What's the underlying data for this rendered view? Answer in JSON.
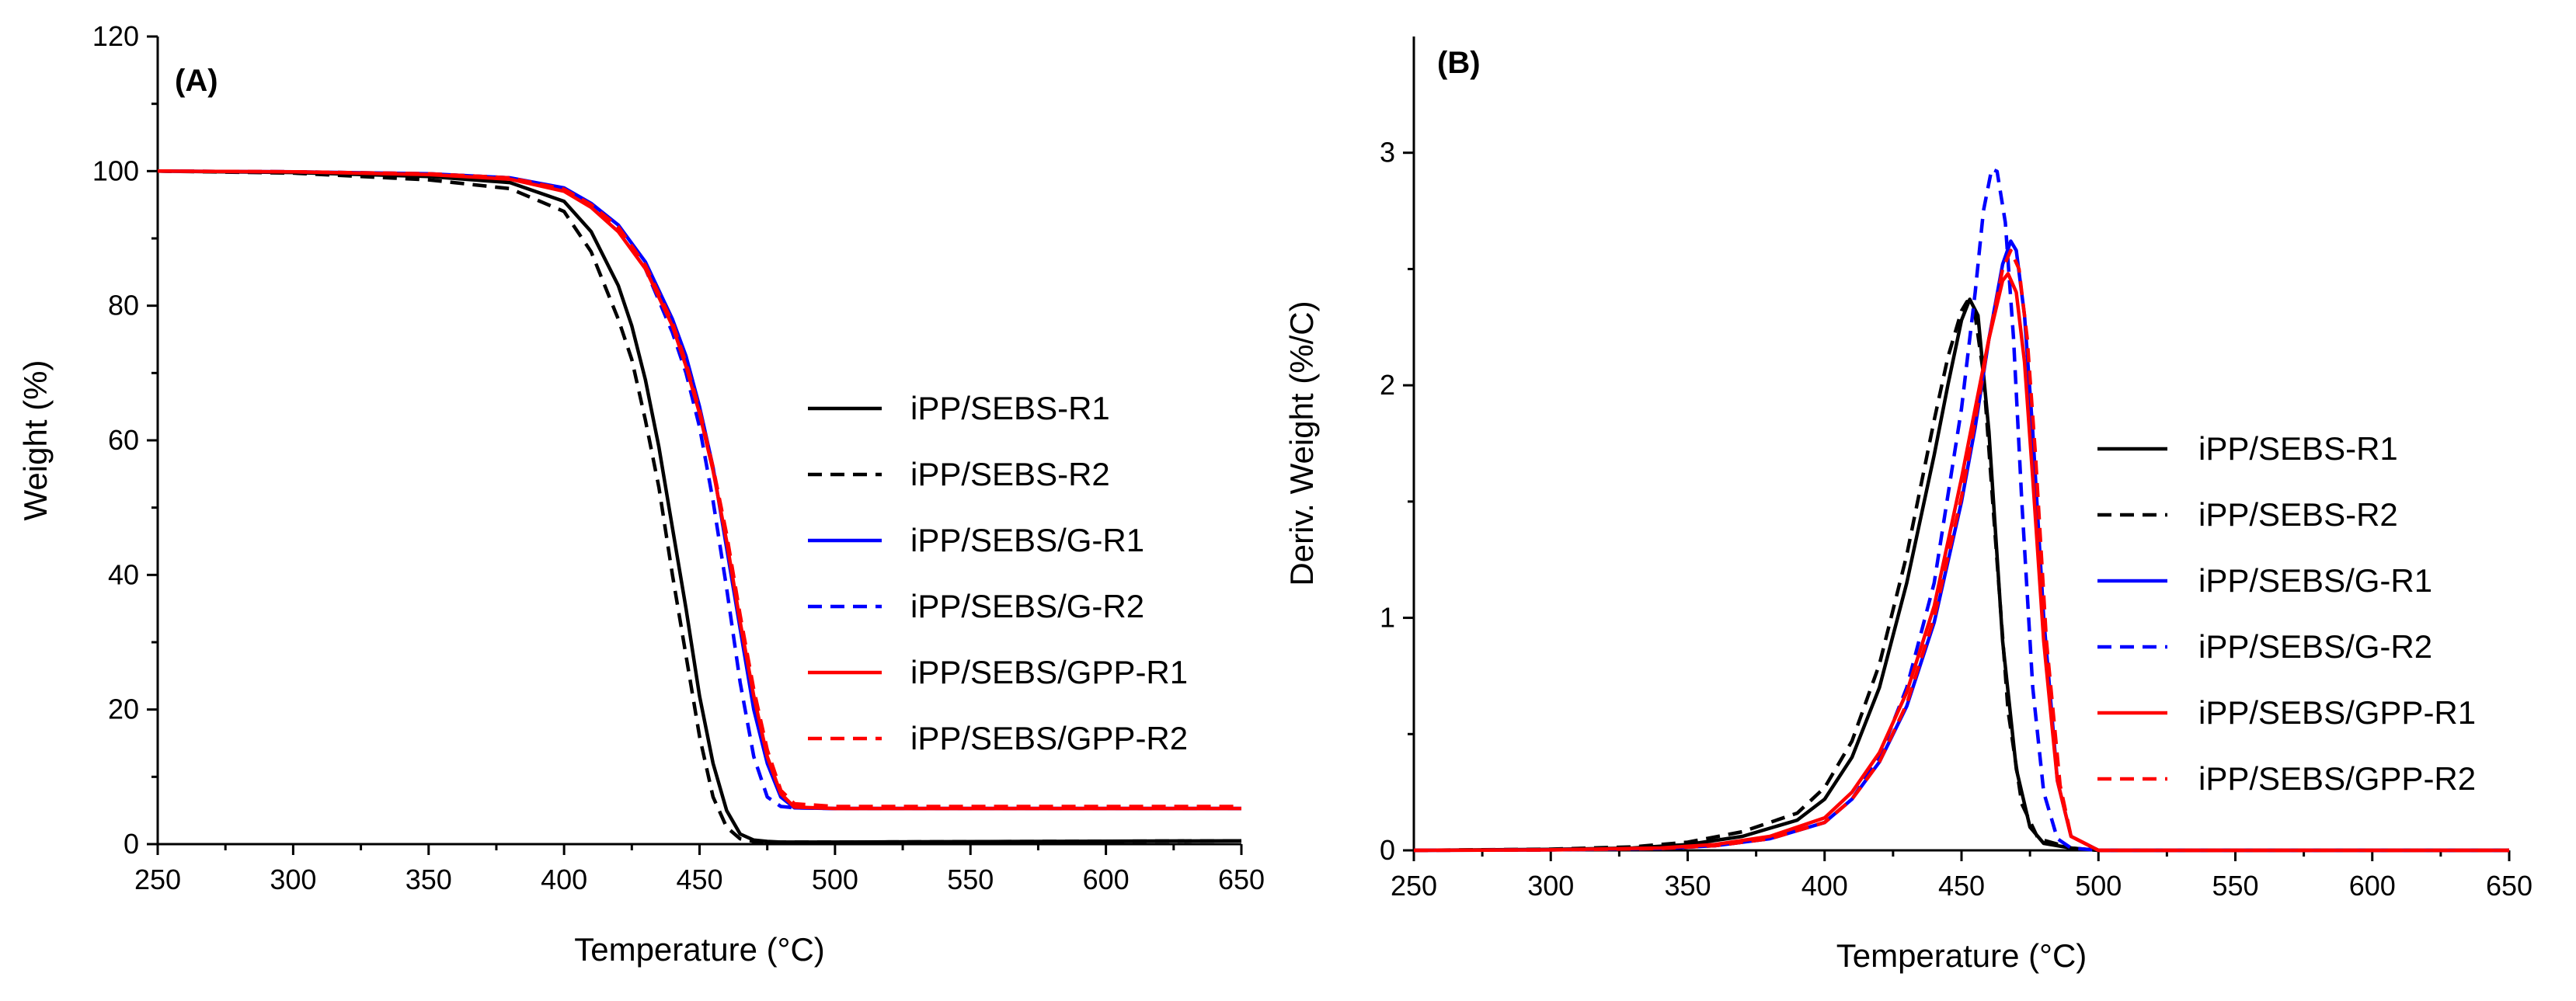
{
  "chart_data": [
    {
      "type": "line",
      "panel_label": "(A)",
      "title": "",
      "xlabel": "Temperature (°C)",
      "ylabel": "Weight (%)",
      "xlim": [
        250,
        650
      ],
      "ylim": [
        0,
        120
      ],
      "xticks": [
        "250",
        "300",
        "350",
        "400",
        "450",
        "500",
        "550",
        "600",
        "650"
      ],
      "yticks": [
        "0",
        "20",
        "40",
        "60",
        "80",
        "100",
        "120"
      ],
      "legend_position": "center-right",
      "series": [
        {
          "name": "iPP/SEBS-R1",
          "color": "#000000",
          "dash": "solid",
          "x": [
            250,
            300,
            350,
            380,
            400,
            410,
            420,
            425,
            430,
            435,
            440,
            445,
            450,
            455,
            460,
            465,
            470,
            475,
            480,
            500,
            650
          ],
          "y": [
            100,
            99.8,
            99.2,
            98.3,
            95.5,
            91,
            83,
            77,
            69,
            59,
            47,
            35,
            22,
            12,
            5,
            1.5,
            0.6,
            0.4,
            0.3,
            0.3,
            0.5
          ]
        },
        {
          "name": "iPP/SEBS-R2",
          "color": "#000000",
          "dash": "dashed",
          "x": [
            250,
            300,
            350,
            380,
            400,
            410,
            420,
            425,
            430,
            435,
            440,
            445,
            450,
            455,
            460,
            465,
            470,
            475,
            480,
            500,
            650
          ],
          "y": [
            100,
            99.7,
            98.7,
            97.4,
            94,
            88,
            78,
            72,
            63,
            53,
            40,
            28,
            16,
            7,
            2.5,
            0.8,
            0.4,
            0.3,
            0.3,
            0.3,
            0.5
          ]
        },
        {
          "name": "iPP/SEBS/G-R1",
          "color": "#0000ff",
          "dash": "solid",
          "x": [
            250,
            300,
            350,
            380,
            400,
            410,
            420,
            430,
            440,
            445,
            450,
            455,
            460,
            465,
            470,
            475,
            480,
            485,
            500,
            650
          ],
          "y": [
            100,
            99.9,
            99.6,
            99,
            97.5,
            95.2,
            92,
            86.5,
            78,
            72.5,
            65,
            56,
            44,
            32,
            20,
            12,
            7,
            5.4,
            5.3,
            5.3
          ]
        },
        {
          "name": "iPP/SEBS/G-R2",
          "color": "#0000ff",
          "dash": "dashed",
          "x": [
            250,
            300,
            350,
            380,
            400,
            410,
            420,
            430,
            440,
            445,
            450,
            455,
            460,
            465,
            470,
            475,
            480,
            485,
            500,
            650
          ],
          "y": [
            100,
            99.9,
            99.6,
            99,
            97.4,
            95,
            91.5,
            85.5,
            76,
            70,
            62,
            51,
            38,
            24,
            13,
            7,
            5.6,
            5.4,
            5.3,
            5.3
          ]
        },
        {
          "name": "iPP/SEBS/GPP-R1",
          "color": "#ff0000",
          "dash": "solid",
          "x": [
            250,
            300,
            350,
            380,
            400,
            410,
            420,
            430,
            440,
            445,
            450,
            455,
            460,
            465,
            470,
            475,
            480,
            485,
            500,
            650
          ],
          "y": [
            100,
            99.9,
            99.5,
            98.8,
            97,
            94.6,
            91,
            85.5,
            77,
            71,
            64,
            55.5,
            45,
            33,
            22,
            13,
            7.5,
            5.5,
            5.3,
            5.3
          ]
        },
        {
          "name": "iPP/SEBS/GPP-R2",
          "color": "#ff0000",
          "dash": "dashed",
          "x": [
            250,
            300,
            350,
            380,
            400,
            410,
            420,
            430,
            440,
            445,
            450,
            455,
            460,
            465,
            470,
            475,
            480,
            485,
            500,
            650
          ],
          "y": [
            100,
            99.9,
            99.6,
            99,
            97.3,
            95,
            91.7,
            86,
            77.5,
            71.5,
            64.5,
            56,
            46,
            34,
            23,
            14,
            8,
            6,
            5.6,
            5.6
          ]
        }
      ]
    },
    {
      "type": "line",
      "panel_label": "(B)",
      "title": "",
      "xlabel": "Temperature (°C)",
      "ylabel": "Deriv. Weight (%/C)",
      "xlim": [
        250,
        650
      ],
      "ylim": [
        0,
        3.5
      ],
      "xticks": [
        "250",
        "300",
        "350",
        "400",
        "450",
        "500",
        "550",
        "600",
        "650"
      ],
      "yticks": [
        "0",
        "1",
        "2",
        "3"
      ],
      "legend_position": "center-right",
      "series": [
        {
          "name": "iPP/SEBS-R1",
          "color": "#000000",
          "dash": "solid",
          "x": [
            250,
            300,
            330,
            350,
            370,
            390,
            400,
            410,
            420,
            430,
            440,
            445,
            450,
            453,
            456,
            460,
            465,
            470,
            475,
            480,
            490,
            500,
            650
          ],
          "y": [
            0,
            0.004,
            0.01,
            0.025,
            0.06,
            0.13,
            0.22,
            0.4,
            0.7,
            1.15,
            1.7,
            2.0,
            2.28,
            2.37,
            2.3,
            1.8,
            0.9,
            0.35,
            0.1,
            0.03,
            0.01,
            0,
            0
          ]
        },
        {
          "name": "iPP/SEBS-R2",
          "color": "#000000",
          "dash": "dashed",
          "x": [
            250,
            300,
            330,
            350,
            370,
            390,
            400,
            410,
            420,
            430,
            440,
            445,
            450,
            452,
            455,
            458,
            462,
            467,
            472,
            478,
            490,
            500,
            650
          ],
          "y": [
            0,
            0.005,
            0.015,
            0.035,
            0.08,
            0.16,
            0.27,
            0.47,
            0.8,
            1.27,
            1.85,
            2.12,
            2.32,
            2.36,
            2.3,
            2.05,
            1.4,
            0.6,
            0.2,
            0.05,
            0.01,
            0,
            0
          ]
        },
        {
          "name": "iPP/SEBS/G-R1",
          "color": "#0000ff",
          "dash": "solid",
          "x": [
            250,
            300,
            340,
            360,
            380,
            400,
            410,
            420,
            430,
            440,
            450,
            455,
            460,
            465,
            468,
            470,
            473,
            476,
            480,
            485,
            490,
            500,
            650
          ],
          "y": [
            0,
            0.002,
            0.008,
            0.02,
            0.05,
            0.12,
            0.22,
            0.38,
            0.62,
            0.98,
            1.5,
            1.82,
            2.2,
            2.52,
            2.62,
            2.58,
            2.3,
            1.8,
            1.0,
            0.3,
            0.06,
            0,
            0
          ]
        },
        {
          "name": "iPP/SEBS/G-R2",
          "color": "#0000ff",
          "dash": "dashed",
          "x": [
            250,
            300,
            340,
            360,
            380,
            400,
            410,
            420,
            430,
            440,
            450,
            455,
            458,
            461,
            463,
            466,
            469,
            472,
            476,
            480,
            485,
            490,
            500,
            650
          ],
          "y": [
            0,
            0.002,
            0.008,
            0.02,
            0.05,
            0.12,
            0.22,
            0.4,
            0.7,
            1.15,
            1.9,
            2.4,
            2.75,
            2.93,
            2.92,
            2.7,
            2.2,
            1.5,
            0.7,
            0.25,
            0.05,
            0.01,
            0,
            0
          ]
        },
        {
          "name": "iPP/SEBS/GPP-R1",
          "color": "#ff0000",
          "dash": "solid",
          "x": [
            250,
            300,
            340,
            360,
            380,
            400,
            410,
            420,
            430,
            440,
            450,
            455,
            460,
            465,
            467,
            470,
            473,
            476,
            480,
            485,
            490,
            500,
            650
          ],
          "y": [
            0,
            0.002,
            0.01,
            0.025,
            0.06,
            0.14,
            0.25,
            0.42,
            0.68,
            1.05,
            1.6,
            1.9,
            2.2,
            2.45,
            2.48,
            2.4,
            2.1,
            1.6,
            0.9,
            0.3,
            0.06,
            0,
            0
          ]
        },
        {
          "name": "iPP/SEBS/GPP-R2",
          "color": "#ff0000",
          "dash": "dashed",
          "x": [
            250,
            300,
            340,
            360,
            380,
            400,
            410,
            420,
            430,
            440,
            450,
            455,
            460,
            465,
            468,
            471,
            474,
            477,
            481,
            486,
            490,
            500,
            650
          ],
          "y": [
            0,
            0.002,
            0.008,
            0.02,
            0.05,
            0.12,
            0.22,
            0.38,
            0.63,
            1.0,
            1.52,
            1.85,
            2.2,
            2.5,
            2.58,
            2.5,
            2.2,
            1.7,
            0.9,
            0.28,
            0.06,
            0,
            0
          ]
        }
      ]
    }
  ]
}
